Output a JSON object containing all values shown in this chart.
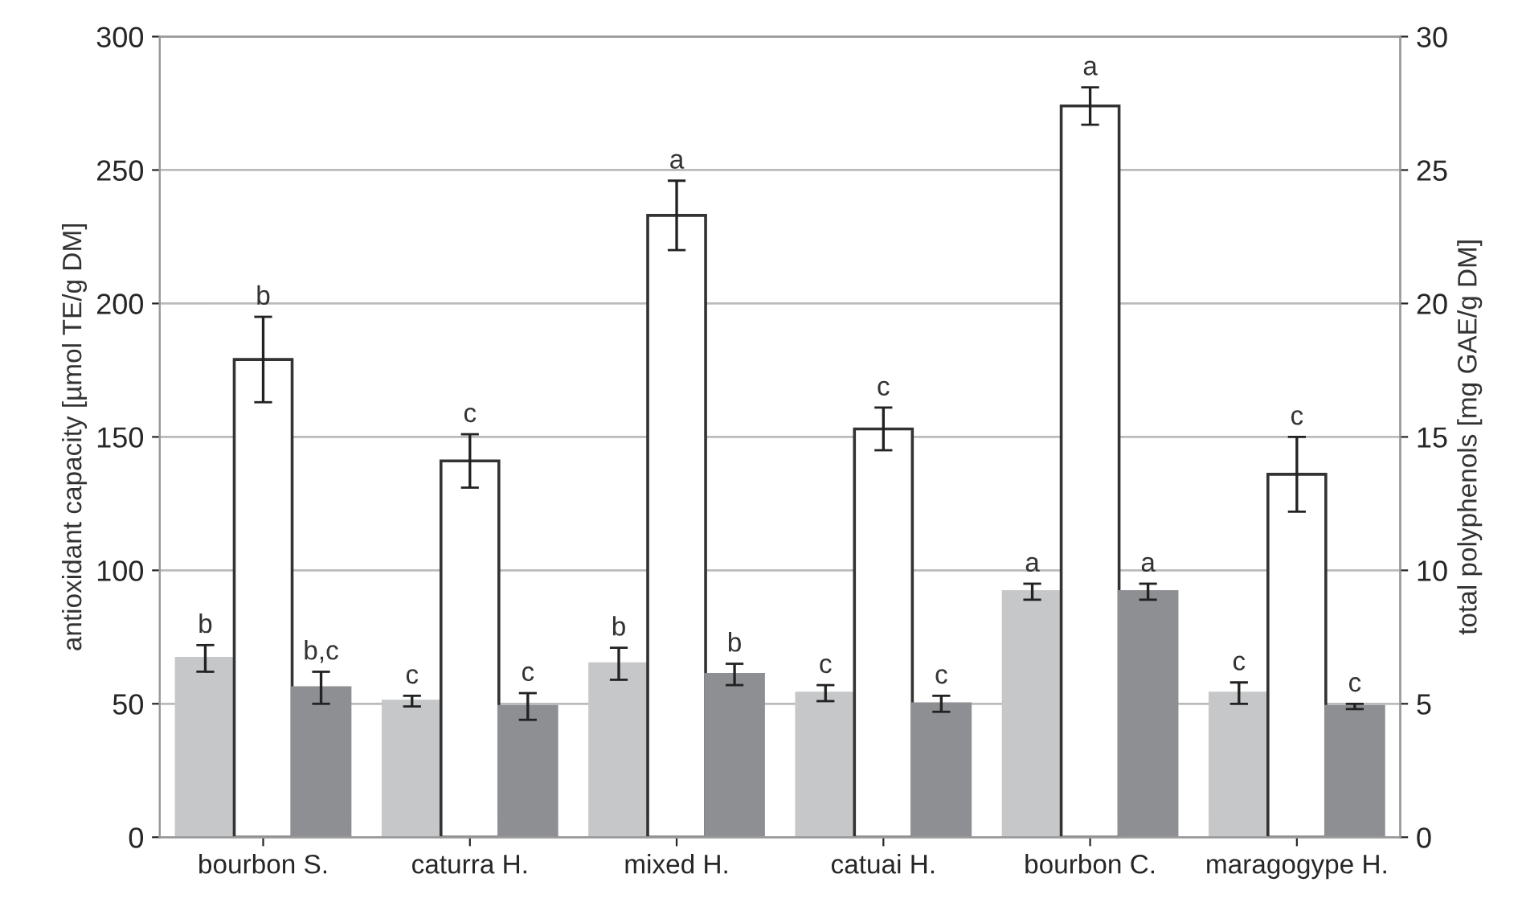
{
  "chart_data": {
    "type": "bar",
    "ylabel": "antioxidant capacity [µmol TE/g DM]",
    "y2label": "total polyphenols [mg GAE/g DM]",
    "categories": [
      "bourbon S.",
      "caturra H.",
      "mixed H.",
      "catuai H.",
      "bourbon C.",
      "maragogype H."
    ],
    "series": [
      {
        "color": "#c6c7c9",
        "values": [
          67,
          51,
          65,
          54,
          92,
          54
        ],
        "errors": [
          5,
          2,
          6,
          3,
          3,
          4
        ],
        "value_labels": [
          "b",
          "c",
          "b",
          "c",
          "a",
          "c"
        ]
      },
      {
        "color": "#ffffff",
        "values": [
          179,
          141,
          233,
          153,
          274,
          136
        ],
        "errors": [
          16,
          10,
          13,
          8,
          7,
          14
        ],
        "value_labels": [
          "b",
          "c",
          "a",
          "c",
          "a",
          "c"
        ]
      },
      {
        "color": "#8e8f93",
        "values": [
          56,
          49,
          61,
          50,
          92,
          49
        ],
        "errors": [
          6,
          5,
          4,
          3,
          3,
          1
        ],
        "value_labels": [
          "b,c",
          "c",
          "b",
          "c",
          "a",
          "c"
        ]
      }
    ],
    "ylim": [
      0,
      300
    ],
    "yticks": [
      0,
      50,
      100,
      150,
      200,
      250,
      300
    ],
    "y2lim": [
      0,
      30
    ],
    "y2ticks": [
      0,
      5,
      10,
      15,
      20,
      25,
      30
    ],
    "grid": "y",
    "legend": false
  }
}
